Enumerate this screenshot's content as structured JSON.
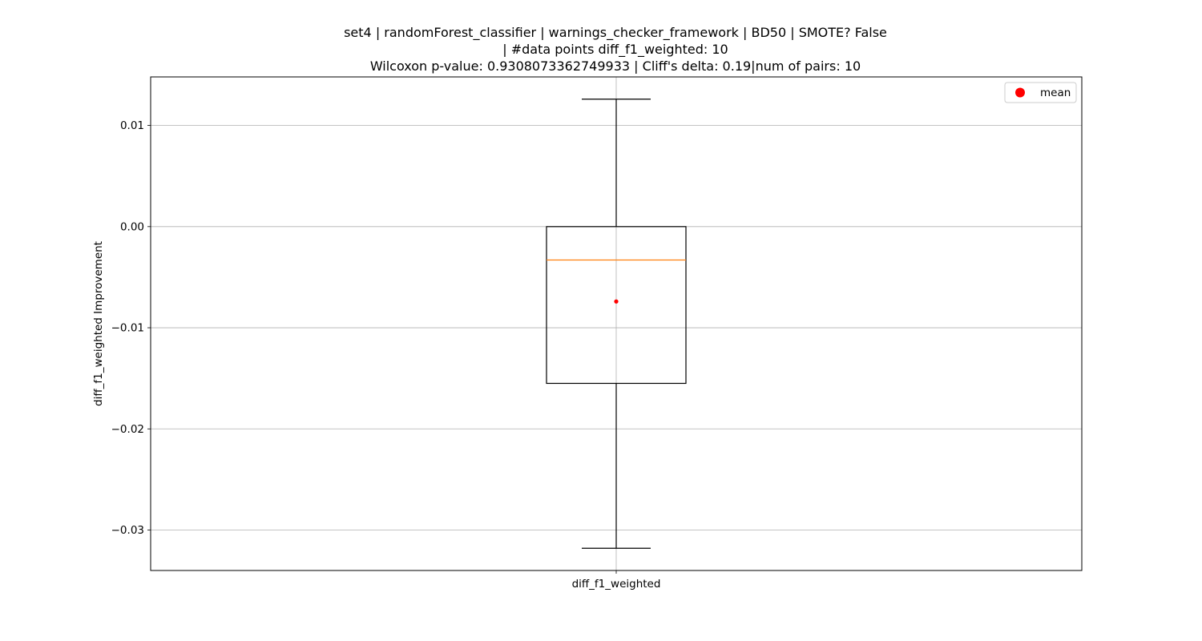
{
  "chart_data": {
    "type": "box",
    "title_lines": [
      "set4 | randomForest_classifier | warnings_checker_framework | BD50 | SMOTE? False",
      "| #data points diff_f1_weighted: 10",
      "Wilcoxon p-value: 0.9308073362749933 | Cliff's delta: 0.19|num of pairs: 10"
    ],
    "xlabel": "",
    "ylabel": "diff_f1_weighted Improvement",
    "categories": [
      "diff_f1_weighted"
    ],
    "ylim": [
      -0.034,
      0.0148
    ],
    "yticks": [
      0.01,
      0.0,
      -0.01,
      -0.02,
      -0.03
    ],
    "ytick_labels": [
      "0.01",
      "0.00",
      "−0.01",
      "−0.02",
      "−0.03"
    ],
    "grid": true,
    "legend": {
      "position": "top-right",
      "entries": [
        {
          "label": "mean",
          "color": "#ff0000",
          "marker": "circle"
        }
      ]
    },
    "boxes": [
      {
        "name": "diff_f1_weighted",
        "whisker_low": -0.0318,
        "q1": -0.0155,
        "median": -0.0033,
        "q3": 0.0,
        "whisker_high": 0.0126,
        "mean": -0.0074
      }
    ],
    "colors": {
      "median": "#ff7f0e",
      "mean": "#ff0000",
      "box": "#000000",
      "grid": "#b0b0b0"
    }
  }
}
